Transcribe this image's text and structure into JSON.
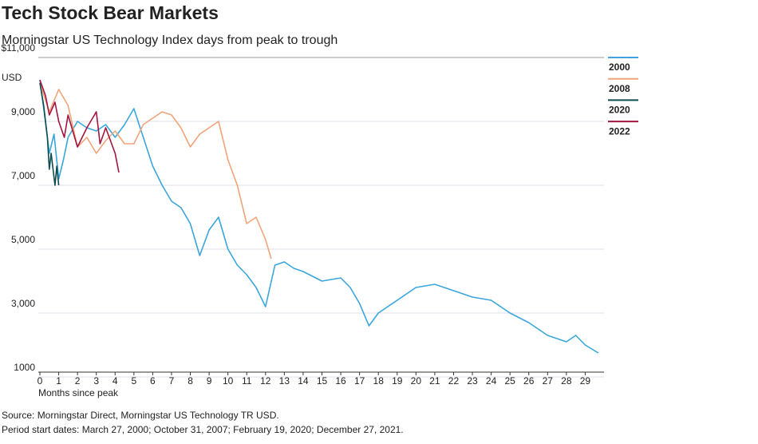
{
  "chart_data": {
    "type": "line",
    "title": "Tech Stock Bear Markets",
    "subtitle": "Morningstar US Technology Index days from peak to trough",
    "x_label": "Months since peak",
    "y_unit": "USD",
    "source": "Source: Morningstar Direct, Morningstar US Technology TR USD.",
    "note": "Period start dates: March 27, 2000; October 31, 2007; February 19, 2020; December 27, 2021.",
    "xlim": [
      0,
      30
    ],
    "xticks": [
      0,
      1,
      2,
      3,
      4,
      5,
      6,
      7,
      8,
      9,
      10,
      11,
      12,
      13,
      14,
      15,
      16,
      17,
      18,
      19,
      20,
      21,
      22,
      23,
      24,
      25,
      26,
      27,
      28,
      29
    ],
    "ylim": [
      1000,
      11000
    ],
    "yticks": [
      1000,
      {
        "value": 3000,
        "label": "3,000"
      },
      {
        "value": 5000,
        "label": "5,000"
      },
      {
        "value": 7000,
        "label": "7,000"
      },
      {
        "value": 9000,
        "label": "9,000"
      },
      {
        "value": 11000,
        "label": "$11,000"
      }
    ],
    "grid": true,
    "series": [
      {
        "name": "2000",
        "color": "#3aa6dc",
        "x": [
          0,
          0.25,
          0.5,
          0.75,
          1,
          1.25,
          1.5,
          2,
          2.5,
          3,
          3.5,
          4,
          4.5,
          5,
          5.5,
          6,
          6.5,
          7,
          7.5,
          8,
          8.5,
          9,
          9.5,
          10,
          10.5,
          11,
          11.5,
          12,
          12.5,
          13,
          13.5,
          14,
          15,
          16,
          16.5,
          17,
          17.5,
          18,
          18.5,
          19,
          20,
          21,
          22,
          23,
          24,
          25,
          26,
          27,
          28,
          28.5,
          29,
          29.7
        ],
        "values": [
          10300,
          9200,
          8000,
          8600,
          7200,
          7800,
          8500,
          9000,
          8800,
          8700,
          8900,
          8500,
          8900,
          9400,
          8500,
          7600,
          7000,
          6500,
          6300,
          5800,
          4800,
          5600,
          6000,
          5000,
          4500,
          4200,
          3800,
          3200,
          4500,
          4600,
          4400,
          4300,
          4000,
          4100,
          3800,
          3300,
          2600,
          3000,
          3200,
          3400,
          3800,
          3900,
          3700,
          3500,
          3400,
          3000,
          2700,
          2300,
          2100,
          2300,
          2000,
          1750
        ]
      },
      {
        "name": "2008",
        "color": "#f0a47a",
        "x": [
          0,
          0.5,
          1,
          1.5,
          2,
          2.5,
          3,
          3.5,
          4,
          4.5,
          5,
          5.5,
          6,
          6.5,
          7,
          7.5,
          8,
          8.5,
          9,
          9.5,
          10,
          10.5,
          11,
          11.5,
          12,
          12.3
        ],
        "values": [
          10200,
          9300,
          10000,
          9500,
          8200,
          8500,
          8000,
          8400,
          8700,
          8300,
          8300,
          8900,
          9100,
          9300,
          9200,
          8800,
          8200,
          8600,
          8800,
          9000,
          7800,
          7000,
          5800,
          6000,
          5300,
          4700
        ]
      },
      {
        "name": "2020",
        "color": "#0e4d4f",
        "x": [
          0,
          0.2,
          0.4,
          0.5,
          0.6,
          0.8,
          0.9,
          1
        ],
        "values": [
          10200,
          9500,
          8500,
          7500,
          8000,
          7000,
          7600,
          7000
        ]
      },
      {
        "name": "2022",
        "color": "#a3163f",
        "x": [
          0,
          0.3,
          0.5,
          0.8,
          1,
          1.3,
          1.5,
          2,
          2.5,
          3,
          3.2,
          3.5,
          4,
          4.2
        ],
        "values": [
          10300,
          9800,
          9200,
          9600,
          9000,
          8500,
          9200,
          8200,
          8800,
          9300,
          8300,
          8800,
          8000,
          7400
        ]
      }
    ]
  }
}
